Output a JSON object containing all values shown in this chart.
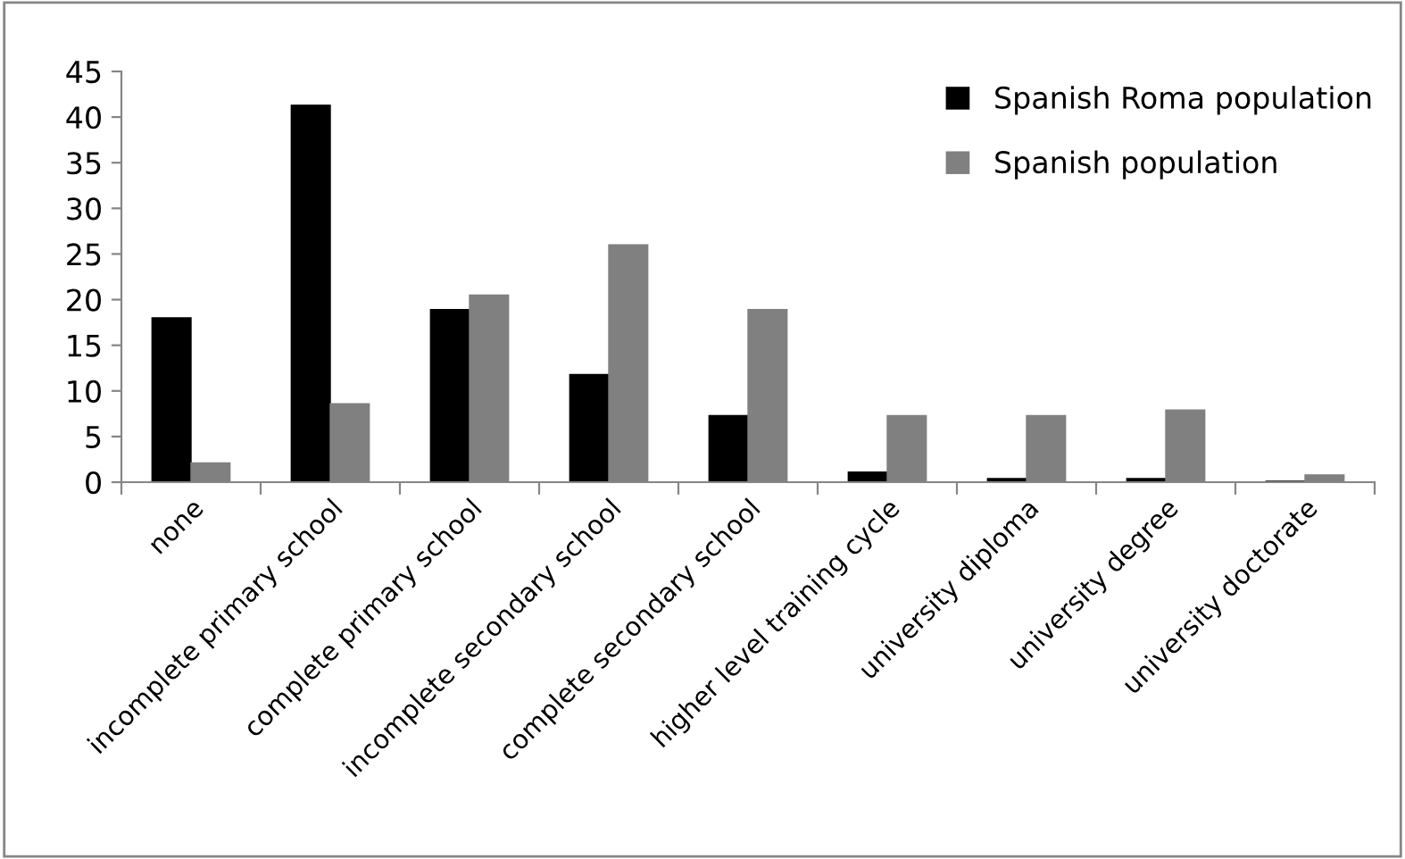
{
  "chart_data": {
    "type": "bar",
    "categories": [
      "none",
      "incomplete primary school",
      "complete primary school",
      "incomplete secondary school",
      "complete secondary school",
      "higher level training cycle",
      "university diploma",
      "university degree",
      "university doctorate"
    ],
    "series": [
      {
        "name": "Spanish Roma population",
        "color": "#000000",
        "values": [
          18,
          41.3,
          18.9,
          11.8,
          7.3,
          1.1,
          0.4,
          0.4,
          0.1
        ]
      },
      {
        "name": "Spanish population",
        "color": "#808080",
        "values": [
          2.1,
          8.6,
          20.5,
          26,
          18.9,
          7.3,
          7.3,
          7.9,
          0.8
        ]
      }
    ],
    "ylim": [
      0,
      45
    ],
    "yticks": [
      0,
      5,
      10,
      15,
      20,
      25,
      30,
      35,
      40,
      45
    ],
    "grid": false,
    "legend": "top right"
  }
}
